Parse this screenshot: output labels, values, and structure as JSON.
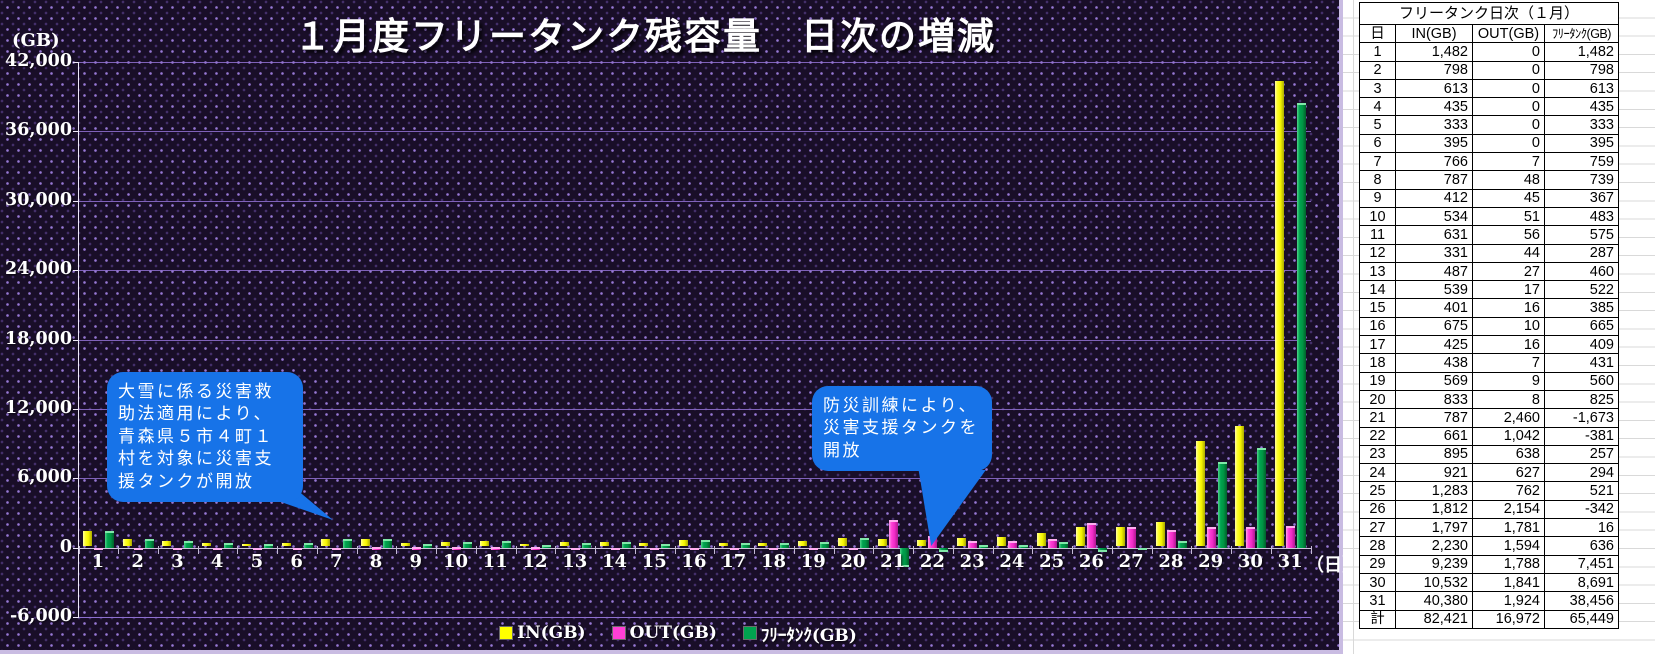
{
  "chart": {
    "title": "１月度フリータンク残容量　日次の増減",
    "y_unit": "(GB)",
    "x_unit": "（日）",
    "y_ticks": [
      "42,000",
      "36,000",
      "30,000",
      "24,000",
      "18,000",
      "12,000",
      "6,000",
      "0",
      "-6,000"
    ]
  },
  "chart_data": {
    "type": "bar",
    "title": "１月度フリータンク残容量　日次の増減",
    "xlabel": "日",
    "ylabel": "GB",
    "ylim": [
      -6000,
      42000
    ],
    "y_tick_step": 6000,
    "grid": true,
    "legend_position": "bottom",
    "categories": [
      1,
      2,
      3,
      4,
      5,
      6,
      7,
      8,
      9,
      10,
      11,
      12,
      13,
      14,
      15,
      16,
      17,
      18,
      19,
      20,
      21,
      22,
      23,
      24,
      25,
      26,
      27,
      28,
      29,
      30,
      31
    ],
    "series": [
      {
        "name": "IN(GB)",
        "legend_label": "IN(GB)",
        "color": "#ffff00",
        "values": [
          1482,
          798,
          613,
          435,
          333,
          395,
          766,
          787,
          412,
          534,
          631,
          331,
          487,
          539,
          401,
          675,
          425,
          438,
          569,
          833,
          787,
          661,
          895,
          921,
          1283,
          1812,
          1797,
          2230,
          9239,
          10532,
          40380
        ]
      },
      {
        "name": "OUT(GB)",
        "legend_label": "OUT(GB)",
        "color": "#ff3fd6",
        "values": [
          0,
          0,
          0,
          0,
          0,
          0,
          7,
          48,
          45,
          51,
          56,
          44,
          27,
          17,
          16,
          10,
          16,
          7,
          9,
          8,
          2460,
          1042,
          638,
          627,
          762,
          2154,
          1781,
          1594,
          1788,
          1841,
          1924
        ]
      },
      {
        "name": "フリータンク(GB)",
        "legend_label": "ﾌﾘｰﾀﾝｸ(GB)",
        "color": "#00a34f",
        "values": [
          1482,
          798,
          613,
          435,
          333,
          395,
          759,
          739,
          367,
          483,
          575,
          287,
          460,
          522,
          385,
          665,
          409,
          431,
          560,
          825,
          -1673,
          -381,
          257,
          294,
          521,
          -342,
          16,
          636,
          7451,
          8691,
          38456
        ]
      }
    ],
    "annotations": [
      {
        "text": "大雪に係る災害救助法適用により、青森県５市４町１村を対象に災害支援タンクが開放",
        "points_to_day": 7
      },
      {
        "text": "防災訓練により、災害支援タンクを開放",
        "points_to_day": 22
      }
    ]
  },
  "callouts": [
    {
      "text": "大雪に係る災害救助法適用により、青森県５市４町１村を対象に災害支援タンクが開放"
    },
    {
      "text": "防災訓練により、災害支援タンクを開放"
    }
  ],
  "table": {
    "title": "フリータンク日次（１月）",
    "columns": [
      "日",
      "IN(GB)",
      "OUT(GB)",
      "ﾌﾘｰﾀﾝｸ(GB)"
    ],
    "rows": [
      [
        "1",
        "1,482",
        "0",
        "1,482"
      ],
      [
        "2",
        "798",
        "0",
        "798"
      ],
      [
        "3",
        "613",
        "0",
        "613"
      ],
      [
        "4",
        "435",
        "0",
        "435"
      ],
      [
        "5",
        "333",
        "0",
        "333"
      ],
      [
        "6",
        "395",
        "0",
        "395"
      ],
      [
        "7",
        "766",
        "7",
        "759"
      ],
      [
        "8",
        "787",
        "48",
        "739"
      ],
      [
        "9",
        "412",
        "45",
        "367"
      ],
      [
        "10",
        "534",
        "51",
        "483"
      ],
      [
        "11",
        "631",
        "56",
        "575"
      ],
      [
        "12",
        "331",
        "44",
        "287"
      ],
      [
        "13",
        "487",
        "27",
        "460"
      ],
      [
        "14",
        "539",
        "17",
        "522"
      ],
      [
        "15",
        "401",
        "16",
        "385"
      ],
      [
        "16",
        "675",
        "10",
        "665"
      ],
      [
        "17",
        "425",
        "16",
        "409"
      ],
      [
        "18",
        "438",
        "7",
        "431"
      ],
      [
        "19",
        "569",
        "9",
        "560"
      ],
      [
        "20",
        "833",
        "8",
        "825"
      ],
      [
        "21",
        "787",
        "2,460",
        "-1,673"
      ],
      [
        "22",
        "661",
        "1,042",
        "-381"
      ],
      [
        "23",
        "895",
        "638",
        "257"
      ],
      [
        "24",
        "921",
        "627",
        "294"
      ],
      [
        "25",
        "1,283",
        "762",
        "521"
      ],
      [
        "26",
        "1,812",
        "2,154",
        "-342"
      ],
      [
        "27",
        "1,797",
        "1,781",
        "16"
      ],
      [
        "28",
        "2,230",
        "1,594",
        "636"
      ],
      [
        "29",
        "9,239",
        "1,788",
        "7,451"
      ],
      [
        "30",
        "10,532",
        "1,841",
        "8,691"
      ],
      [
        "31",
        "40,380",
        "1,924",
        "38,456"
      ]
    ],
    "total": [
      "計",
      "82,421",
      "16,972",
      "65,449"
    ]
  },
  "colors": {
    "background": "#190e28",
    "dots": "#9e7ede",
    "gridline": "#9271d2",
    "axis": "#eee8f8",
    "callout": "#1773e8",
    "in_bar": "#ffff00",
    "out_bar": "#ff3fd6",
    "free_bar": "#00a34f"
  }
}
